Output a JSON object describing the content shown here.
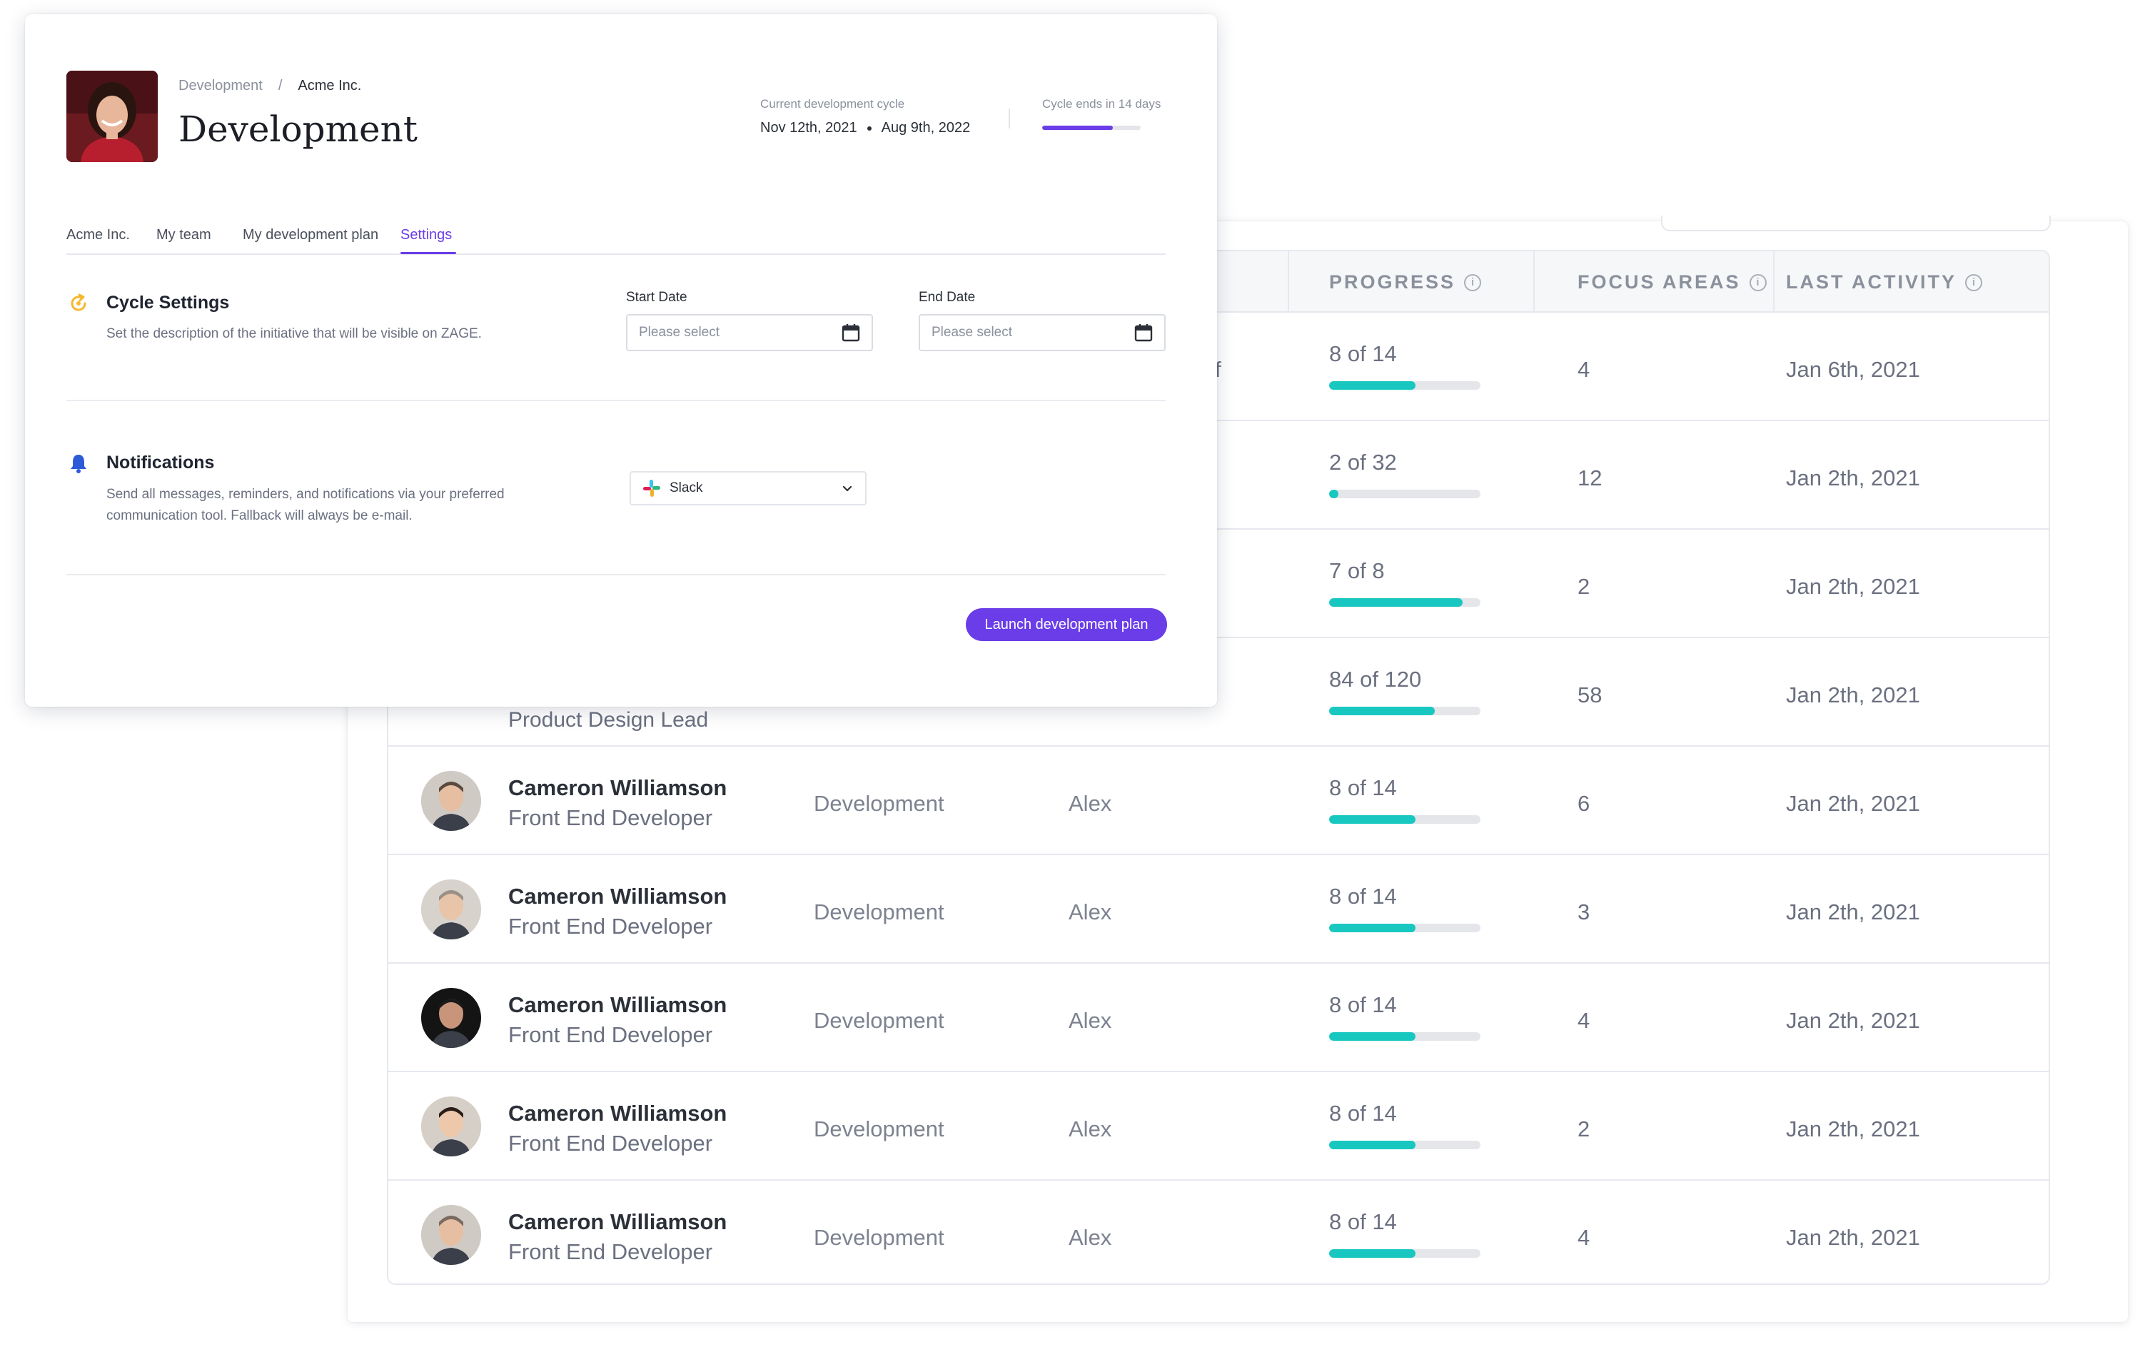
{
  "header": {
    "breadcrumb": [
      "Development",
      "Acme Inc."
    ],
    "breadcrumb_separator": "/",
    "title": "Development"
  },
  "cycle": {
    "label": "Current development cycle",
    "start": "Nov 12th, 2021",
    "end": "Aug 9th, 2022",
    "ends_label": "Cycle ends in 14 days",
    "progress_fraction": 0.72
  },
  "tabs": [
    {
      "label": "Acme Inc.",
      "active": false
    },
    {
      "label": "My team",
      "active": false
    },
    {
      "label": "My development plan",
      "active": false
    },
    {
      "label": "Settings",
      "active": true
    }
  ],
  "cycle_settings": {
    "title": "Cycle Settings",
    "description": "Set the description of the initiative that will be visible on ZAGE.",
    "start_date": {
      "label": "Start Date",
      "placeholder": "Please select"
    },
    "end_date": {
      "label": "End Date",
      "placeholder": "Please select"
    }
  },
  "notifications": {
    "title": "Notifications",
    "description_line1": "Send all messages, reminders, and notifications via your preferred",
    "description_line2": "communication tool. Fallback will always be e-mail.",
    "selected_tool": "Slack"
  },
  "launch_button": "Launch development plan",
  "table": {
    "headers": {
      "progress": "PROGRESS",
      "focus_areas": "FOCUS AREAS",
      "last_activity": "LAST ACTIVITY"
    },
    "partial_row_text": "Product Design Lead",
    "partial_stub": "f",
    "rows": [
      {
        "progress": "8 of 14",
        "fraction": 0.57,
        "focus": "4",
        "last": "Jan 6th, 2021"
      },
      {
        "progress": "2 of 32",
        "fraction": 0.0625,
        "focus": "12",
        "last": "Jan 2th, 2021"
      },
      {
        "progress": "7 of 8",
        "fraction": 0.875,
        "focus": "2",
        "last": "Jan 2th, 2021"
      },
      {
        "progress": "84 of 120",
        "fraction": 0.7,
        "focus": "58",
        "last": "Jan 2th, 2021"
      },
      {
        "name": "Cameron Williamson",
        "role": "Front End Developer",
        "team": "Development",
        "manager": "Alex",
        "progress": "8 of 14",
        "fraction": 0.57,
        "focus": "6",
        "last": "Jan 2th, 2021"
      },
      {
        "name": "Cameron Williamson",
        "role": "Front End Developer",
        "team": "Development",
        "manager": "Alex",
        "progress": "8 of 14",
        "fraction": 0.57,
        "focus": "3",
        "last": "Jan 2th, 2021"
      },
      {
        "name": "Cameron Williamson",
        "role": "Front End Developer",
        "team": "Development",
        "manager": "Alex",
        "progress": "8 of 14",
        "fraction": 0.57,
        "focus": "4",
        "last": "Jan 2th, 2021"
      },
      {
        "name": "Cameron Williamson",
        "role": "Front End Developer",
        "team": "Development",
        "manager": "Alex",
        "progress": "8 of 14",
        "fraction": 0.57,
        "focus": "2",
        "last": "Jan 2th, 2021"
      },
      {
        "name": "Cameron Williamson",
        "role": "Front End Developer",
        "team": "Development",
        "manager": "Alex",
        "progress": "8 of 14",
        "fraction": 0.57,
        "focus": "4",
        "last": "Jan 2th, 2021"
      }
    ]
  },
  "colors": {
    "accent": "#6a3de8",
    "progress": "#18c8c0",
    "cycle_icon": "#f5b82e",
    "bell_icon": "#2d5bd8"
  },
  "icons": [
    "refresh-cycle-icon",
    "bell-icon",
    "calendar-icon",
    "slack-icon",
    "chevron-down-icon",
    "info-icon"
  ]
}
